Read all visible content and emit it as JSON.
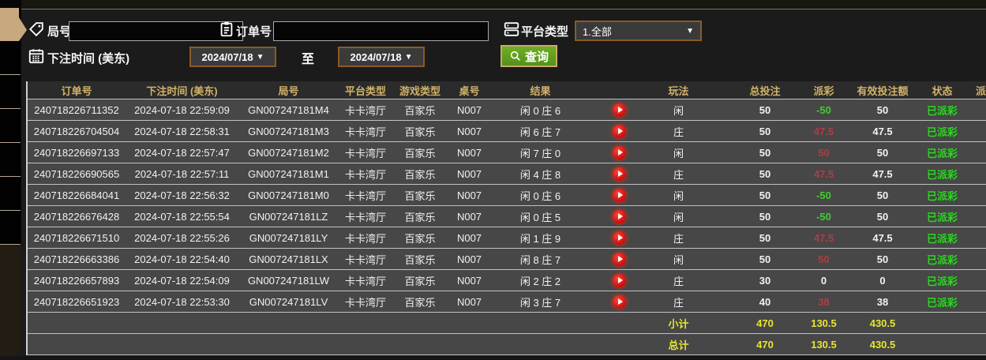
{
  "filters": {
    "round_label": "局号",
    "order_label": "订单号",
    "platform_label": "平台类型",
    "platform_value": "1.全部",
    "bet_time_label": "下注时间 (美东)",
    "date_from": "2024/07/18",
    "to_label": "至",
    "date_to": "2024/07/18",
    "query_label": "查询",
    "round_value": "",
    "order_value": ""
  },
  "colors": {
    "accent_gold": "#d1b269",
    "button_green": "#5f9e1e",
    "border_brown": "#8a5a24",
    "payout_win_red": "#b23b45",
    "payout_loss_green": "#44cc33",
    "status_green": "#35d42c",
    "totals_yellow": "#e6e632"
  },
  "table": {
    "headers": [
      "订单号",
      "下注时间 (美东)",
      "局号",
      "平台类型",
      "游戏类型",
      "桌号",
      "结果",
      "",
      "玩法",
      "",
      "总投注",
      "派彩",
      "有效投注额",
      "状态",
      "派彩时间"
    ],
    "rows": [
      {
        "order": "240718226711352",
        "time": "2024-07-18 22:59:09",
        "round": "GN007247181M4",
        "platform": "卡卡湾厅",
        "game": "百家乐",
        "table_no": "N007",
        "result": "闲 0 庄 6",
        "play": "闲",
        "total_bet": "50",
        "payout": "-50",
        "payout_sign": "neg",
        "valid_bet": "50",
        "status": "已派彩"
      },
      {
        "order": "240718226704504",
        "time": "2024-07-18 22:58:31",
        "round": "GN007247181M3",
        "platform": "卡卡湾厅",
        "game": "百家乐",
        "table_no": "N007",
        "result": "闲 6 庄 7",
        "play": "庄",
        "total_bet": "50",
        "payout": "47.5",
        "payout_sign": "pos",
        "valid_bet": "47.5",
        "status": "已派彩"
      },
      {
        "order": "240718226697133",
        "time": "2024-07-18 22:57:47",
        "round": "GN007247181M2",
        "platform": "卡卡湾厅",
        "game": "百家乐",
        "table_no": "N007",
        "result": "闲 7 庄 0",
        "play": "闲",
        "total_bet": "50",
        "payout": "50",
        "payout_sign": "pos",
        "valid_bet": "50",
        "status": "已派彩"
      },
      {
        "order": "240718226690565",
        "time": "2024-07-18 22:57:11",
        "round": "GN007247181M1",
        "platform": "卡卡湾厅",
        "game": "百家乐",
        "table_no": "N007",
        "result": "闲 4 庄 8",
        "play": "庄",
        "total_bet": "50",
        "payout": "47.5",
        "payout_sign": "pos",
        "valid_bet": "47.5",
        "status": "已派彩"
      },
      {
        "order": "240718226684041",
        "time": "2024-07-18 22:56:32",
        "round": "GN007247181M0",
        "platform": "卡卡湾厅",
        "game": "百家乐",
        "table_no": "N007",
        "result": "闲 0 庄 6",
        "play": "闲",
        "total_bet": "50",
        "payout": "-50",
        "payout_sign": "neg",
        "valid_bet": "50",
        "status": "已派彩"
      },
      {
        "order": "240718226676428",
        "time": "2024-07-18 22:55:54",
        "round": "GN007247181LZ",
        "platform": "卡卡湾厅",
        "game": "百家乐",
        "table_no": "N007",
        "result": "闲 0 庄 5",
        "play": "闲",
        "total_bet": "50",
        "payout": "-50",
        "payout_sign": "neg",
        "valid_bet": "50",
        "status": "已派彩"
      },
      {
        "order": "240718226671510",
        "time": "2024-07-18 22:55:26",
        "round": "GN007247181LY",
        "platform": "卡卡湾厅",
        "game": "百家乐",
        "table_no": "N007",
        "result": "闲 1 庄 9",
        "play": "庄",
        "total_bet": "50",
        "payout": "47.5",
        "payout_sign": "pos",
        "valid_bet": "47.5",
        "status": "已派彩"
      },
      {
        "order": "240718226663386",
        "time": "2024-07-18 22:54:40",
        "round": "GN007247181LX",
        "platform": "卡卡湾厅",
        "game": "百家乐",
        "table_no": "N007",
        "result": "闲 8 庄 7",
        "play": "闲",
        "total_bet": "50",
        "payout": "50",
        "payout_sign": "pos",
        "valid_bet": "50",
        "status": "已派彩"
      },
      {
        "order": "240718226657893",
        "time": "2024-07-18 22:54:09",
        "round": "GN007247181LW",
        "platform": "卡卡湾厅",
        "game": "百家乐",
        "table_no": "N007",
        "result": "闲 2 庄 2",
        "play": "庄",
        "total_bet": "30",
        "payout": "0",
        "payout_sign": "zero",
        "valid_bet": "0",
        "status": "已派彩"
      },
      {
        "order": "240718226651923",
        "time": "2024-07-18 22:53:30",
        "round": "GN007247181LV",
        "platform": "卡卡湾厅",
        "game": "百家乐",
        "table_no": "N007",
        "result": "闲 3 庄 7",
        "play": "庄",
        "total_bet": "40",
        "payout": "38",
        "payout_sign": "pos",
        "valid_bet": "38",
        "status": "已派彩"
      }
    ],
    "subtotal": {
      "label": "小计",
      "total_bet": "470",
      "payout": "130.5",
      "valid_bet": "430.5"
    },
    "grand_total": {
      "label": "总计",
      "total_bet": "470",
      "payout": "130.5",
      "valid_bet": "430.5"
    }
  }
}
